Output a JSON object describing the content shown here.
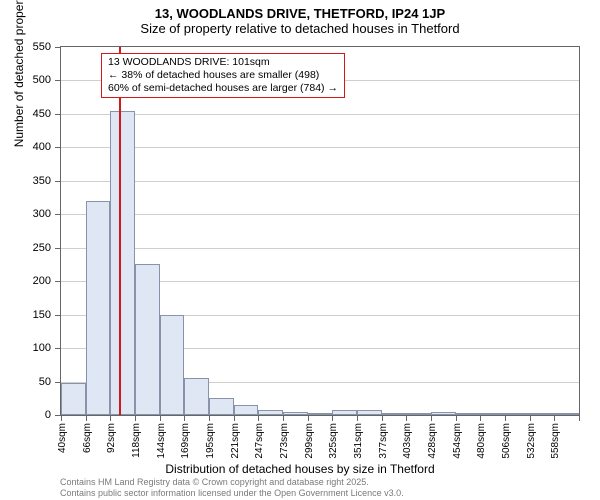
{
  "title_main": "13, WOODLANDS DRIVE, THETFORD, IP24 1JP",
  "title_sub": "Size of property relative to detached houses in Thetford",
  "y_axis_label": "Number of detached properties",
  "x_axis_label": "Distribution of detached houses by size in Thetford",
  "footer_line1": "Contains HM Land Registry data © Crown copyright and database right 2025.",
  "footer_line2": "Contains public sector information licensed under the Open Government Licence v3.0.",
  "chart": {
    "type": "histogram",
    "ylim": [
      0,
      550
    ],
    "ytick_step": 50,
    "x_bins": [
      40,
      66,
      92,
      118,
      144,
      169,
      195,
      221,
      247,
      273,
      299,
      325,
      351,
      377,
      403,
      428,
      454,
      480,
      506,
      532,
      558
    ],
    "x_unit_suffix": "sqm",
    "bar_values": [
      48,
      320,
      455,
      225,
      150,
      55,
      25,
      15,
      8,
      5,
      2,
      8,
      8,
      3,
      2,
      4,
      2,
      1,
      3,
      1,
      1
    ],
    "marker_value": 101,
    "marker_color": "#d11919",
    "bar_fill": "#dfe6f4",
    "bar_stroke": "#8892a8",
    "grid_color": "#cfcfcf",
    "axis_color": "#666666",
    "background": "#ffffff"
  },
  "annotation": {
    "line1": "13 WOODLANDS DRIVE: 101sqm",
    "line2": "← 38% of detached houses are smaller (498)",
    "line3": "60% of semi-detached houses are larger (784) →"
  }
}
